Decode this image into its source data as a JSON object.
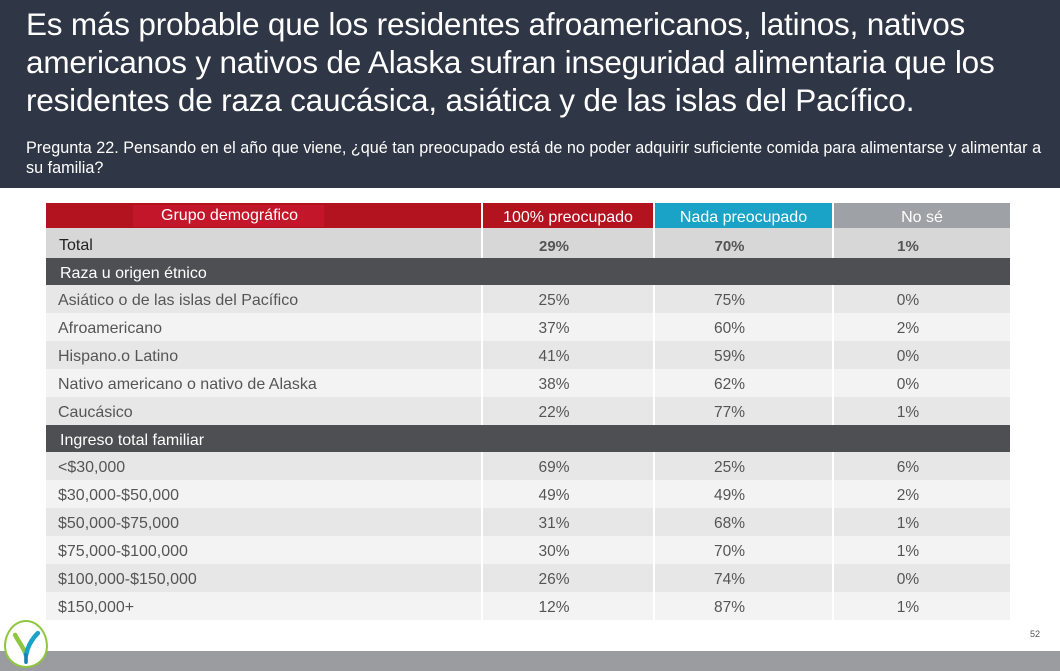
{
  "header": {
    "title": "Es más probable que los residentes afroamericanos, latinos, nativos americanos y nativos de Alaska sufran inseguridad alimentaria que los residentes de raza caucásica, asiática y de las islas del Pacífico.",
    "subtitle": "Pregunta 22. Pensando en el año que viene, ¿qué tan preocupado está de no poder adquirir suficiente comida para alimentarse y alimentar a su familia?"
  },
  "chart_data": {
    "type": "table",
    "columns": [
      "Grupo demográfico",
      "100% preocupado",
      "Nada preocupado",
      "No sé"
    ],
    "total": {
      "label": "Total",
      "values": [
        "29%",
        "70%",
        "1%"
      ]
    },
    "sections": [
      {
        "title": "Raza u origen étnico",
        "rows": [
          {
            "label": "Asiático o de las islas del Pacífico",
            "values": [
              "25%",
              "75%",
              "0%"
            ]
          },
          {
            "label": "Afroamericano",
            "values": [
              "37%",
              "60%",
              "2%"
            ]
          },
          {
            "label": "Hispano.o Latino",
            "values": [
              "41%",
              "59%",
              "0%"
            ]
          },
          {
            "label": "Nativo americano o nativo de Alaska",
            "values": [
              "38%",
              "62%",
              "0%"
            ]
          },
          {
            "label": "Caucásico",
            "values": [
              "22%",
              "77%",
              "1%"
            ]
          }
        ]
      },
      {
        "title": "Ingreso total familiar",
        "rows": [
          {
            "label": "<$30,000",
            "values": [
              "69%",
              "25%",
              "6%"
            ]
          },
          {
            "label": "$30,000-$50,000",
            "values": [
              "49%",
              "49%",
              "2%"
            ]
          },
          {
            "label": "$50,000-$75,000",
            "values": [
              "31%",
              "68%",
              "1%"
            ]
          },
          {
            "label": "$75,000-$100,000",
            "values": [
              "30%",
              "70%",
              "1%"
            ]
          },
          {
            "label": "$100,000-$150,000",
            "values": [
              "26%",
              "74%",
              "0%"
            ]
          },
          {
            "label": "$150,000+",
            "values": [
              "12%",
              "87%",
              "1%"
            ]
          }
        ]
      }
    ]
  },
  "footer": {
    "page_number": "52",
    "logo_icon": "leaf-logo-icon"
  },
  "colors": {
    "header_bg": "#2f3645",
    "col_worried": "#b3121f",
    "col_not_worried": "#1aa3c6",
    "col_dont_know": "#9ea1a5",
    "section_bg": "#4d4f52"
  }
}
